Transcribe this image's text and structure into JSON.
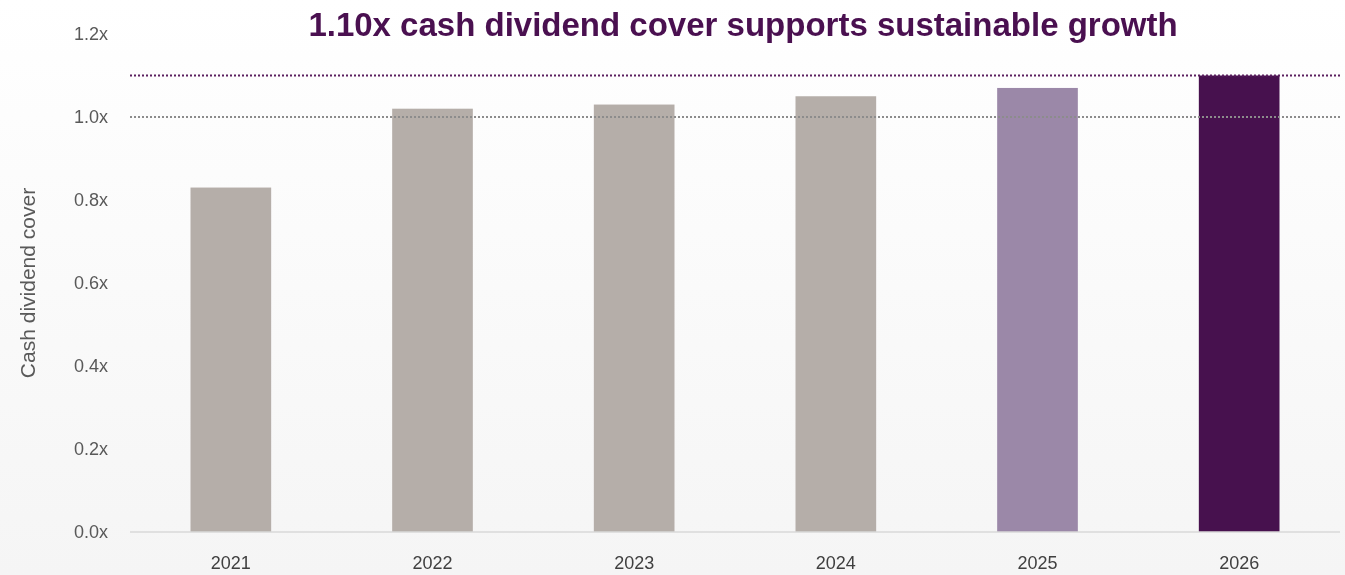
{
  "chart_data": {
    "type": "bar",
    "title": "1.10x cash dividend cover supports sustainable growth",
    "ylabel": "Cash dividend cover",
    "categories": [
      "2021",
      "2022",
      "2023",
      "2024",
      "2025",
      "2026"
    ],
    "values": [
      0.83,
      1.02,
      1.03,
      1.05,
      1.07,
      1.1
    ],
    "colors": [
      "#b5aea9",
      "#b5aea9",
      "#b5aea9",
      "#b5aea9",
      "#9b88a8",
      "#47114e"
    ],
    "ylim": [
      0,
      1.2
    ],
    "yticks": [
      {
        "value": 0,
        "label": "0.0x"
      },
      {
        "value": 0.2,
        "label": "0.2x"
      },
      {
        "value": 0.4,
        "label": "0.4x"
      },
      {
        "value": 0.6,
        "label": "0.6x"
      },
      {
        "value": 0.8,
        "label": "0.8x"
      },
      {
        "value": 1.0,
        "label": "1.0x"
      },
      {
        "value": 1.2,
        "label": "1.2x"
      }
    ],
    "ref_lines": [
      {
        "axis": "y",
        "value": 1.0,
        "color": "#8c8c8c",
        "line_style": "dotted"
      },
      {
        "axis": "y",
        "value": 1.1,
        "color": "#5a1f5e",
        "line_style": "dotted"
      }
    ],
    "grid": false
  }
}
